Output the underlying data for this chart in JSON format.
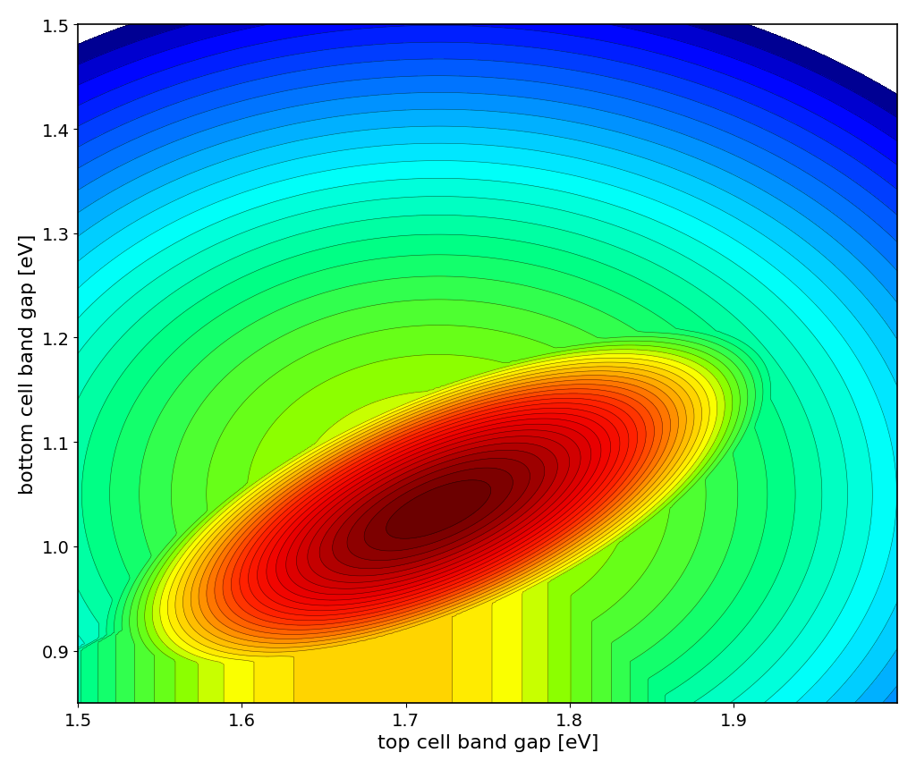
{
  "xlabel": "top cell band gap [eV]",
  "ylabel": "bottom cell band gap [eV]",
  "xlim": [
    1.5,
    2.0
  ],
  "ylim": [
    0.85,
    1.5
  ],
  "x_ticks": [
    1.5,
    1.6,
    1.7,
    1.8,
    1.9
  ],
  "y_ticks": [
    0.9,
    1.0,
    1.1,
    1.2,
    1.3,
    1.4,
    1.5
  ],
  "n_contour_levels": 45,
  "figsize": [
    10.24,
    8.62
  ],
  "dpi": 100,
  "xlabel_fontsize": 16,
  "ylabel_fontsize": 16,
  "tick_fontsize": 14
}
